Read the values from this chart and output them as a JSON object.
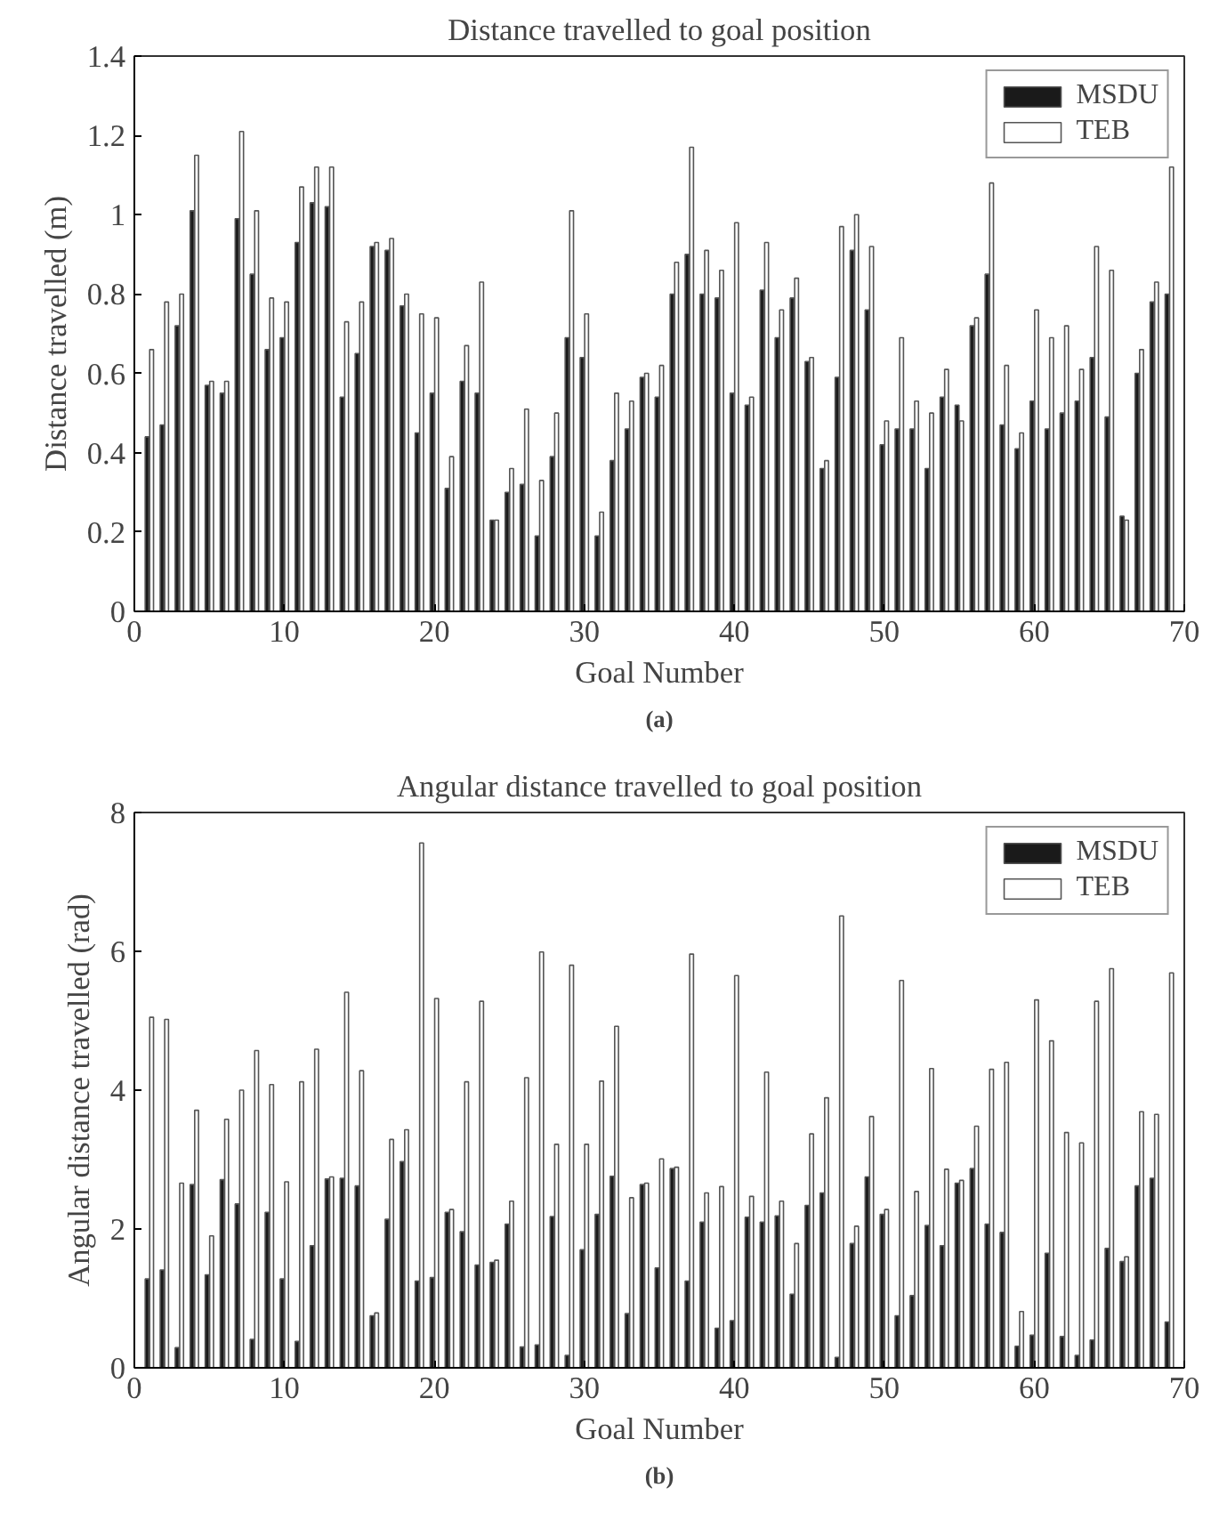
{
  "chart_data": [
    {
      "type": "bar",
      "title": "Distance travelled to goal position",
      "xlabel": "Goal Number",
      "ylabel": "Distance travelled (m)",
      "x": [
        1,
        2,
        3,
        4,
        5,
        6,
        7,
        8,
        9,
        10,
        11,
        12,
        13,
        14,
        15,
        16,
        17,
        18,
        19,
        20,
        21,
        22,
        23,
        24,
        25,
        26,
        27,
        28,
        29,
        30,
        31,
        32,
        33,
        34,
        35,
        36,
        37,
        38,
        39,
        40,
        41,
        42,
        43,
        44,
        45,
        46,
        47,
        48,
        49,
        50,
        51,
        52,
        53,
        54,
        55,
        56,
        57,
        58,
        59,
        60,
        61,
        62,
        63,
        64,
        65,
        66,
        67,
        68,
        69
      ],
      "xlim": [
        0,
        70
      ],
      "xticks": [
        0,
        10,
        20,
        30,
        40,
        50,
        60,
        70
      ],
      "ylim": [
        0,
        1.4
      ],
      "yticks": [
        0,
        0.2,
        0.4,
        0.6,
        0.8,
        1,
        1.2,
        1.4
      ],
      "grid": false,
      "legend": "top right",
      "annotations": [
        "(a)"
      ],
      "series": [
        {
          "name": "MSDU",
          "color": "#1a1a1a",
          "values": [
            0.44,
            0.47,
            0.72,
            1.01,
            0.57,
            0.55,
            0.99,
            0.85,
            0.66,
            0.69,
            0.93,
            1.03,
            1.02,
            0.54,
            0.65,
            0.92,
            0.91,
            0.77,
            0.45,
            0.55,
            0.31,
            0.58,
            0.55,
            0.23,
            0.3,
            0.32,
            0.19,
            0.39,
            0.69,
            0.64,
            0.19,
            0.38,
            0.46,
            0.59,
            0.54,
            0.8,
            0.9,
            0.8,
            0.79,
            0.55,
            0.52,
            0.81,
            0.69,
            0.79,
            0.63,
            0.36,
            0.59,
            0.91,
            0.76,
            0.42,
            0.46,
            0.46,
            0.36,
            0.54,
            0.52,
            0.72,
            0.85,
            0.47,
            0.41,
            0.53,
            0.46,
            0.5,
            0.53,
            0.64,
            0.49,
            0.24,
            0.6,
            0.78,
            0.8
          ]
        },
        {
          "name": "TEB",
          "color": "#ffffff",
          "values": [
            0.66,
            0.78,
            0.8,
            1.15,
            0.58,
            0.58,
            1.21,
            1.01,
            0.79,
            0.78,
            1.07,
            1.12,
            1.12,
            0.73,
            0.78,
            0.93,
            0.94,
            0.8,
            0.75,
            0.74,
            0.39,
            0.67,
            0.83,
            0.23,
            0.36,
            0.51,
            0.33,
            0.5,
            1.01,
            0.75,
            0.25,
            0.55,
            0.53,
            0.6,
            0.62,
            0.88,
            1.17,
            0.91,
            0.86,
            0.98,
            0.54,
            0.93,
            0.76,
            0.84,
            0.64,
            0.38,
            0.97,
            1.0,
            0.92,
            0.48,
            0.69,
            0.53,
            0.5,
            0.61,
            0.48,
            0.74,
            1.08,
            0.62,
            0.45,
            0.76,
            0.69,
            0.72,
            0.61,
            0.92,
            0.86,
            0.23,
            0.66,
            0.83,
            1.12
          ]
        }
      ]
    },
    {
      "type": "bar",
      "title": "Angular distance travelled to goal position",
      "xlabel": "Goal Number",
      "ylabel": "Angular distance travelled (rad)",
      "x": [
        1,
        2,
        3,
        4,
        5,
        6,
        7,
        8,
        9,
        10,
        11,
        12,
        13,
        14,
        15,
        16,
        17,
        18,
        19,
        20,
        21,
        22,
        23,
        24,
        25,
        26,
        27,
        28,
        29,
        30,
        31,
        32,
        33,
        34,
        35,
        36,
        37,
        38,
        39,
        40,
        41,
        42,
        43,
        44,
        45,
        46,
        47,
        48,
        49,
        50,
        51,
        52,
        53,
        54,
        55,
        56,
        57,
        58,
        59,
        60,
        61,
        62,
        63,
        64,
        65,
        66,
        67,
        68,
        69
      ],
      "xlim": [
        0,
        70
      ],
      "xticks": [
        0,
        10,
        20,
        30,
        40,
        50,
        60,
        70
      ],
      "ylim": [
        0,
        8
      ],
      "yticks": [
        0,
        2,
        4,
        6,
        8
      ],
      "grid": false,
      "legend": "top right",
      "annotations": [
        "(b)"
      ],
      "series": [
        {
          "name": "MSDU",
          "color": "#1a1a1a",
          "values": [
            1.28,
            1.41,
            0.29,
            2.64,
            1.34,
            2.71,
            2.36,
            0.41,
            2.24,
            1.28,
            0.38,
            1.76,
            2.72,
            2.73,
            2.62,
            0.75,
            2.14,
            2.97,
            1.25,
            1.3,
            2.24,
            1.96,
            1.48,
            1.52,
            2.07,
            0.3,
            0.33,
            2.18,
            0.18,
            1.7,
            2.21,
            2.76,
            0.78,
            2.64,
            1.44,
            2.87,
            1.25,
            2.1,
            0.57,
            0.68,
            2.17,
            2.1,
            2.19,
            1.06,
            2.34,
            2.52,
            0.15,
            1.79,
            2.75,
            2.21,
            0.75,
            1.04,
            2.05,
            1.76,
            2.66,
            2.87,
            2.07,
            1.95,
            0.31,
            0.47,
            1.65,
            0.45,
            0.18,
            0.4,
            1.72,
            1.53,
            2.62,
            2.73,
            0.66
          ]
        },
        {
          "name": "TEB",
          "color": "#ffffff",
          "values": [
            5.05,
            5.02,
            2.66,
            3.71,
            1.9,
            3.58,
            4.0,
            4.57,
            4.08,
            2.68,
            4.12,
            4.59,
            2.75,
            5.41,
            4.28,
            0.79,
            3.29,
            3.43,
            7.56,
            5.32,
            2.28,
            4.12,
            5.28,
            1.55,
            2.4,
            4.18,
            5.99,
            3.22,
            5.8,
            3.22,
            4.13,
            4.92,
            2.45,
            2.66,
            3.01,
            2.89,
            5.96,
            2.52,
            2.61,
            5.65,
            2.47,
            4.26,
            2.4,
            1.79,
            3.37,
            3.89,
            6.51,
            2.04,
            3.62,
            2.28,
            5.58,
            2.54,
            4.31,
            2.86,
            2.7,
            3.48,
            4.3,
            4.4,
            0.81,
            5.3,
            4.71,
            3.39,
            3.24,
            5.28,
            5.75,
            1.6,
            3.69,
            3.65,
            5.69
          ]
        }
      ]
    }
  ]
}
